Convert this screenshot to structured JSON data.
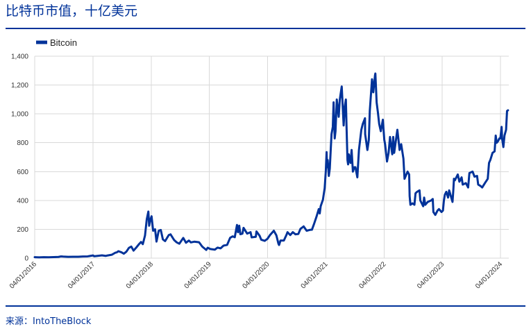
{
  "source": "来源：IntoTheBlock",
  "theme": {
    "accent": "#003299",
    "grid": "#d9d9d9",
    "text": "#333333"
  },
  "chart_data": {
    "type": "line",
    "title": "比特币市值，十亿美元",
    "legend": {
      "position": "top-left"
    },
    "grid": true,
    "ylim": [
      0,
      1400
    ],
    "xlim": [
      "2016-01-04",
      "2024-02-25"
    ],
    "yticks": [
      {
        "value": 0,
        "label": "0"
      },
      {
        "value": 200,
        "label": "200"
      },
      {
        "value": 400,
        "label": "400"
      },
      {
        "value": 600,
        "label": "600"
      },
      {
        "value": 800,
        "label": "800"
      },
      {
        "value": 1000,
        "label": "1,000"
      },
      {
        "value": 1200,
        "label": "1,200"
      },
      {
        "value": 1400,
        "label": "1,400"
      }
    ],
    "xticks": [
      {
        "date": "2016-01-04",
        "label": "04/01/2016"
      },
      {
        "date": "2017-01-04",
        "label": "04/01/2017"
      },
      {
        "date": "2018-01-04",
        "label": "04/01/2018"
      },
      {
        "date": "2019-01-04",
        "label": "04/01/2019"
      },
      {
        "date": "2020-01-04",
        "label": "04/01/2020"
      },
      {
        "date": "2021-01-04",
        "label": "04/01/2021"
      },
      {
        "date": "2022-01-04",
        "label": "04/01/2022"
      },
      {
        "date": "2023-01-04",
        "label": "04/01/2023"
      },
      {
        "date": "2024-01-04",
        "label": "04/01/2024"
      }
    ],
    "x": [
      "2016-01-04",
      "2016-02-01",
      "2016-03-01",
      "2016-04-01",
      "2016-05-02",
      "2016-06-01",
      "2016-06-16",
      "2016-07-01",
      "2016-08-01",
      "2016-09-01",
      "2016-10-03",
      "2016-11-01",
      "2016-12-01",
      "2017-01-04",
      "2017-01-12",
      "2017-02-01",
      "2017-03-01",
      "2017-03-24",
      "2017-04-03",
      "2017-05-01",
      "2017-05-25",
      "2017-06-01",
      "2017-06-12",
      "2017-07-01",
      "2017-07-16",
      "2017-08-01",
      "2017-08-17",
      "2017-09-01",
      "2017-09-15",
      "2017-10-01",
      "2017-10-20",
      "2017-11-01",
      "2017-11-12",
      "2017-11-26",
      "2017-12-07",
      "2017-12-17",
      "2017-12-22",
      "2017-12-28",
      "2018-01-06",
      "2018-01-16",
      "2018-01-28",
      "2018-02-06",
      "2018-02-20",
      "2018-03-05",
      "2018-03-18",
      "2018-04-01",
      "2018-04-24",
      "2018-05-05",
      "2018-05-28",
      "2018-06-12",
      "2018-06-29",
      "2018-07-24",
      "2018-08-10",
      "2018-08-28",
      "2018-09-10",
      "2018-10-01",
      "2018-10-31",
      "2018-11-20",
      "2018-12-15",
      "2018-12-24",
      "2019-01-10",
      "2019-02-07",
      "2019-02-24",
      "2019-03-15",
      "2019-04-03",
      "2019-04-25",
      "2019-05-14",
      "2019-05-30",
      "2019-06-12",
      "2019-06-26",
      "2019-07-02",
      "2019-07-10",
      "2019-07-17",
      "2019-07-30",
      "2019-08-06",
      "2019-08-29",
      "2019-09-19",
      "2019-09-26",
      "2019-10-22",
      "2019-10-26",
      "2019-11-15",
      "2019-11-25",
      "2019-12-17",
      "2020-01-03",
      "2020-01-19",
      "2020-02-12",
      "2020-02-28",
      "2020-03-12",
      "2020-03-16",
      "2020-03-25",
      "2020-04-15",
      "2020-04-30",
      "2020-05-08",
      "2020-05-25",
      "2020-06-10",
      "2020-06-27",
      "2020-07-15",
      "2020-07-28",
      "2020-08-17",
      "2020-09-05",
      "2020-09-25",
      "2020-10-08",
      "2020-10-21",
      "2020-11-05",
      "2020-11-20",
      "2020-11-26",
      "2020-12-02",
      "2020-12-16",
      "2020-12-27",
      "2021-01-03",
      "2021-01-08",
      "2021-01-11",
      "2021-01-15",
      "2021-01-22",
      "2021-01-28",
      "2021-02-08",
      "2021-02-16",
      "2021-02-21",
      "2021-02-28",
      "2021-03-05",
      "2021-03-13",
      "2021-03-25",
      "2021-04-01",
      "2021-04-13",
      "2021-04-25",
      "2021-05-02",
      "2021-05-09",
      "2021-05-13",
      "2021-05-19",
      "2021-05-23",
      "2021-05-27",
      "2021-06-07",
      "2021-06-14",
      "2021-06-22",
      "2021-07-01",
      "2021-07-08",
      "2021-07-20",
      "2021-07-30",
      "2021-08-14",
      "2021-08-23",
      "2021-09-06",
      "2021-09-07",
      "2021-09-21",
      "2021-09-30",
      "2021-10-06",
      "2021-10-20",
      "2021-10-28",
      "2021-11-08",
      "2021-11-10",
      "2021-11-18",
      "2021-11-26",
      "2021-12-04",
      "2021-12-14",
      "2021-12-27",
      "2022-01-05",
      "2022-01-10",
      "2022-01-22",
      "2022-02-01",
      "2022-02-10",
      "2022-02-24",
      "2022-03-02",
      "2022-03-08",
      "2022-03-28",
      "2022-04-11",
      "2022-04-21",
      "2022-05-05",
      "2022-05-12",
      "2022-05-31",
      "2022-06-10",
      "2022-06-13",
      "2022-06-18",
      "2022-07-01",
      "2022-07-13",
      "2022-07-20",
      "2022-07-30",
      "2022-08-14",
      "2022-08-19",
      "2022-09-06",
      "2022-09-12",
      "2022-09-19",
      "2022-10-05",
      "2022-10-26",
      "2022-11-05",
      "2022-11-09",
      "2022-11-21",
      "2022-12-05",
      "2022-12-14",
      "2022-12-30",
      "2023-01-08",
      "2023-01-14",
      "2023-01-20",
      "2023-01-29",
      "2023-02-09",
      "2023-02-16",
      "2023-03-09",
      "2023-03-14",
      "2023-03-18",
      "2023-03-24",
      "2023-04-11",
      "2023-04-21",
      "2023-05-05",
      "2023-05-12",
      "2023-06-01",
      "2023-06-15",
      "2023-06-23",
      "2023-07-13",
      "2023-07-25",
      "2023-08-10",
      "2023-08-17",
      "2023-09-01",
      "2023-09-11",
      "2023-09-28",
      "2023-10-16",
      "2023-10-24",
      "2023-11-01",
      "2023-11-15",
      "2023-11-28",
      "2023-12-05",
      "2023-12-11",
      "2023-12-19",
      "2023-12-28",
      "2024-01-03",
      "2024-01-11",
      "2024-01-14",
      "2024-01-22",
      "2024-01-29",
      "2024-02-08",
      "2024-02-14",
      "2024-02-20"
    ],
    "series": [
      {
        "name": "Bitcoin",
        "color": "#003299",
        "values": [
          6.6,
          5.7,
          6.6,
          6.3,
          7.0,
          8.3,
          11.8,
          10.6,
          9.2,
          9.6,
          9.8,
          11.6,
          12.3,
          18.5,
          13.0,
          15.8,
          19.4,
          15.5,
          18.0,
          23.4,
          38.5,
          39.4,
          48.0,
          40.5,
          30.9,
          45.0,
          71.3,
          80.3,
          52.0,
          72.0,
          98.0,
          112,
          97,
          157,
          270,
          323,
          225,
          260,
          290,
          190,
          200,
          115,
          190,
          195,
          130,
          118,
          160,
          165,
          125,
          110,
          100,
          140,
          107,
          122,
          109,
          114,
          110,
          80,
          57,
          72,
          63,
          59,
          73,
          68,
          87,
          92,
          141,
          151,
          145,
          230,
          180,
          225,
          166,
          170,
          210,
          170,
          180,
          144,
          148,
          185,
          155,
          128,
          120,
          134,
          160,
          190,
          158,
          100,
          91,
          122,
          122,
          158,
          180,
          160,
          180,
          165,
          168,
          203,
          220,
          190,
          196,
          197,
          236,
          285,
          340,
          310,
          360,
          405,
          485,
          600,
          735,
          630,
          680,
          570,
          620,
          860,
          910,
          1080,
          830,
          880,
          1100,
          980,
          1100,
          1190,
          920,
          1050,
          1100,
          920,
          680,
          650,
          720,
          660,
          750,
          600,
          630,
          630,
          560,
          750,
          890,
          930,
          970,
          860,
          750,
          820,
          1020,
          1240,
          1150,
          1270,
          1280,
          1080,
          1010,
          930,
          880,
          960,
          820,
          790,
          670,
          730,
          840,
          720,
          840,
          730,
          890,
          750,
          790,
          690,
          550,
          600,
          580,
          430,
          370,
          380,
          370,
          450,
          460,
          470,
          400,
          360,
          420,
          370,
          390,
          400,
          410,
          320,
          300,
          330,
          340,
          320,
          330,
          400,
          440,
          460,
          420,
          470,
          390,
          470,
          550,
          540,
          580,
          530,
          560,
          510,
          520,
          490,
          590,
          600,
          565,
          570,
          510,
          500,
          490,
          520,
          550,
          660,
          680,
          730,
          740,
          850,
          800,
          810,
          830,
          830,
          910,
          830,
          770,
          850,
          890,
          1020,
          1025
        ]
      }
    ]
  }
}
